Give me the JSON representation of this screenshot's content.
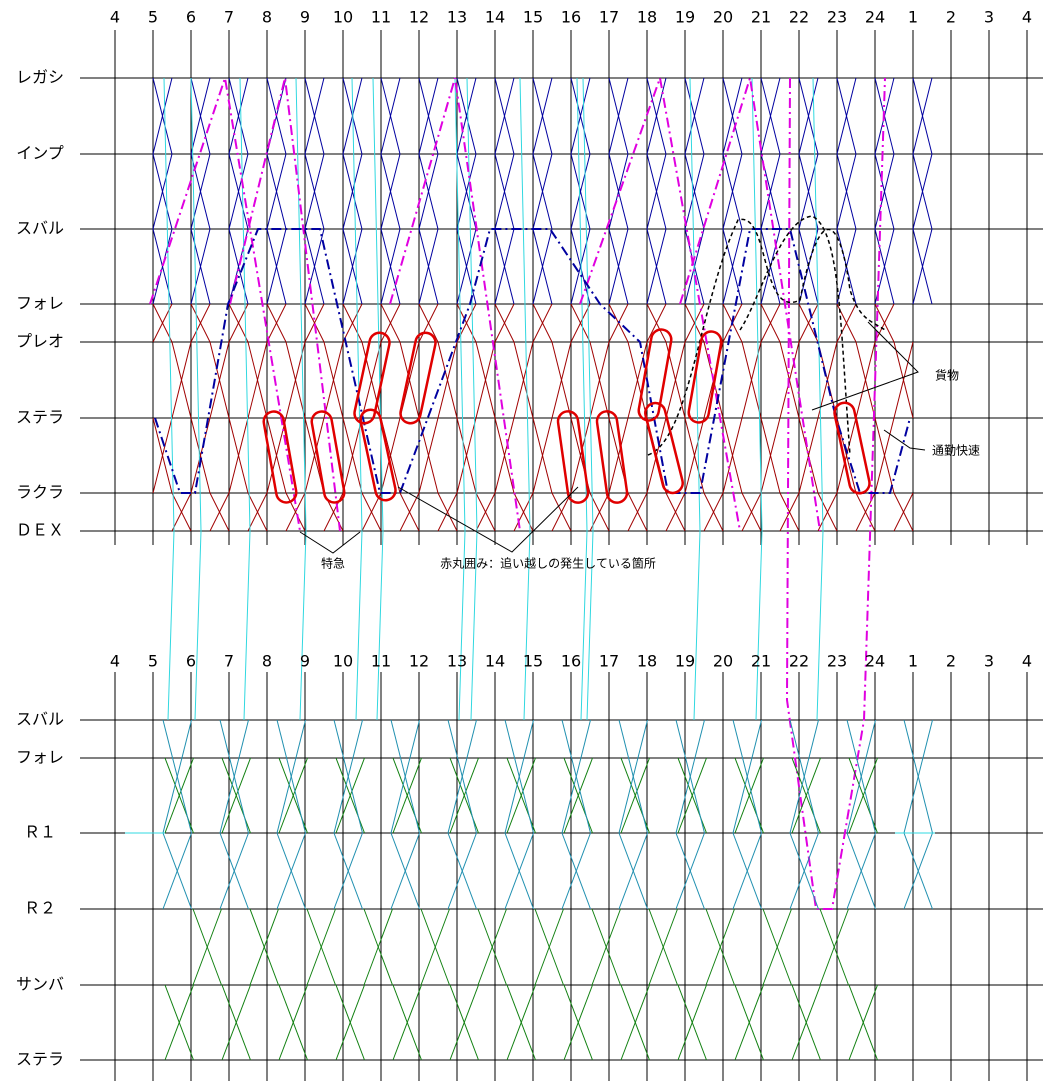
{
  "top": {
    "hours": [
      4,
      5,
      6,
      7,
      8,
      9,
      10,
      11,
      12,
      13,
      14,
      15,
      16,
      17,
      18,
      19,
      20,
      21,
      22,
      23,
      24,
      1,
      2,
      3,
      4
    ],
    "stations": [
      "レガシ",
      "インプ",
      "スバル",
      "フォレ",
      "プレオ",
      "ステラ",
      "ラクラ",
      "ＤＥＸ"
    ]
  },
  "bottom": {
    "hours": [
      4,
      5,
      6,
      7,
      8,
      9,
      10,
      11,
      12,
      13,
      14,
      15,
      16,
      17,
      18,
      19,
      20,
      21,
      22,
      23,
      24,
      1,
      2,
      3,
      4
    ],
    "stations": [
      "スバル",
      "フォレ",
      "Ｒ１",
      "Ｒ２",
      "サンバ",
      "ステラ"
    ]
  },
  "annotations": {
    "express": "特急",
    "overtaking": "赤丸囲み：追い越しの発生している箇所",
    "freight": "貨物",
    "commuter_rapid": "通勤快速"
  }
}
